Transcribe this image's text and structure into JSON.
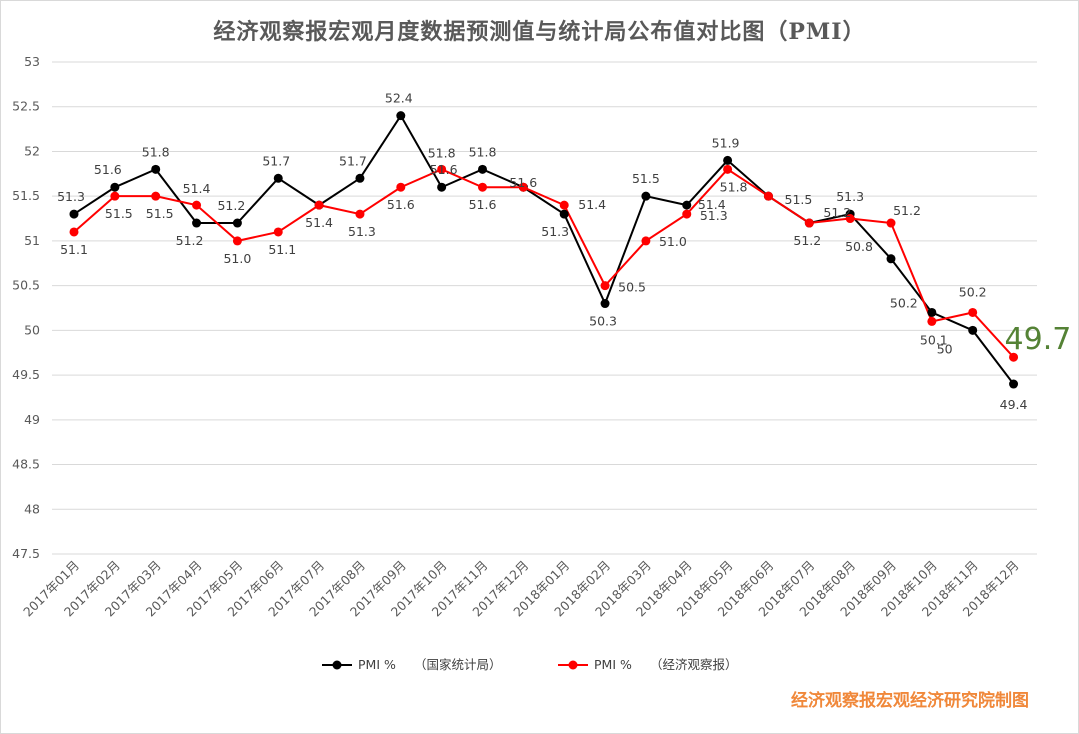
{
  "chart_data": {
    "type": "line",
    "title": "经济观察报宏观月度数据预测值与统计局公布值对比图（PMI）",
    "categories": [
      "2017年01月",
      "2017年02月",
      "2017年03月",
      "2017年04月",
      "2017年05月",
      "2017年06月",
      "2017年07月",
      "2017年08月",
      "2017年09月",
      "2017年10月",
      "2017年11月",
      "2017年12月",
      "2018年01月",
      "2018年02月",
      "2018年03月",
      "2018年04月",
      "2018年05月",
      "2018年06月",
      "2018年07月",
      "2018年08月",
      "2018年09月",
      "2018年10月",
      "2018年11月",
      "2018年12月"
    ],
    "ylim": [
      47.5,
      53
    ],
    "yticks": [
      "47.5",
      "48",
      "48.5",
      "49",
      "49.5",
      "50",
      "50.5",
      "51",
      "51.5",
      "52",
      "52.5",
      "53"
    ],
    "grid": true,
    "legend_position": "bottom",
    "series": [
      {
        "name": "PMI %",
        "legend_note": "（国家统计局）",
        "color": "#000000",
        "values": [
          51.3,
          51.6,
          51.8,
          51.2,
          51.2,
          51.7,
          51.4,
          51.7,
          52.4,
          51.6,
          51.8,
          51.6,
          51.3,
          50.3,
          51.5,
          51.4,
          51.9,
          51.5,
          51.2,
          51.3,
          50.8,
          50.2,
          50.0,
          49.4
        ],
        "labels": [
          "51.3",
          "51.6",
          "51.8",
          "51.2",
          "51.2",
          "51.7",
          "",
          "51.7",
          "52.4",
          "51.6",
          "51.8",
          "",
          "51.3",
          "50.3",
          "51.5",
          "51.4",
          "51.9",
          "51.5",
          "51.2",
          "51.3",
          "50.8",
          "50.2",
          "50",
          "49.4"
        ]
      },
      {
        "name": "PMI %",
        "legend_note": "（经济观察报）",
        "color": "#ff0000",
        "values": [
          51.1,
          51.5,
          51.5,
          51.4,
          51.0,
          51.1,
          51.4,
          51.3,
          51.6,
          51.8,
          51.6,
          51.6,
          51.4,
          50.5,
          51.0,
          51.3,
          51.8,
          51.5,
          51.2,
          51.25,
          51.2,
          50.1,
          50.2,
          49.7
        ],
        "labels": [
          "51.1",
          "51.5",
          "51.5",
          "51.4",
          "51.0",
          "51.1",
          "51.4",
          "51.3",
          "51.6",
          "51.8",
          "51.6",
          "51.6",
          "51.4",
          "50.5",
          "51.0",
          "51.3",
          "51.8",
          "",
          "51.2",
          "",
          "51.2",
          "50.1",
          "50.2",
          ""
        ]
      }
    ],
    "callout": "49.7",
    "footer": "经济观察报宏观经济研究院制图"
  }
}
